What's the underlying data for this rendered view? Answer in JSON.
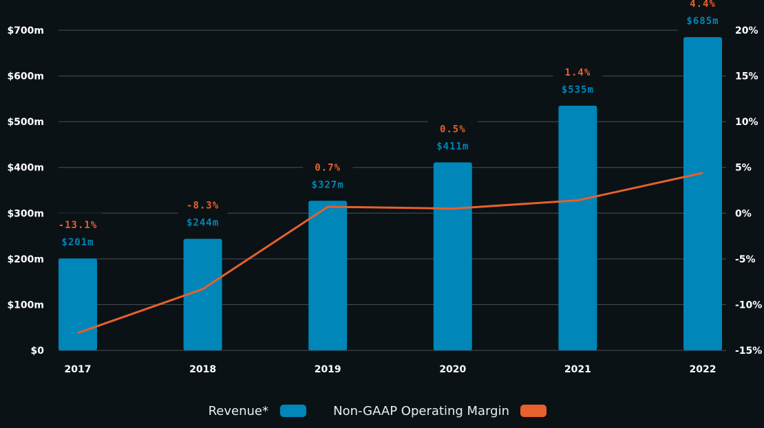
{
  "chart_data": {
    "type": "bar",
    "categories": [
      "2017",
      "2018",
      "2019",
      "2020",
      "2021",
      "2022"
    ],
    "series": [
      {
        "name": "Revenue*",
        "type": "bar",
        "axis": "left",
        "values": [
          201,
          244,
          327,
          411,
          535,
          685
        ],
        "labels": [
          "$201m",
          "$244m",
          "$327m",
          "$411m",
          "$535m",
          "$685m"
        ],
        "color": "#0086b8"
      },
      {
        "name": "Non-GAAP Operating Margin",
        "type": "line",
        "axis": "right",
        "values": [
          -13.1,
          -8.3,
          0.7,
          0.5,
          1.4,
          4.4
        ],
        "labels": [
          "-13.1%",
          "-8.3%",
          "0.7%",
          "0.5%",
          "1.4%",
          "4.4%"
        ],
        "color": "#e8602c"
      }
    ],
    "y_left": {
      "ylim": [
        0,
        700
      ],
      "ticks": [
        0,
        100,
        200,
        300,
        400,
        500,
        600,
        700
      ],
      "tick_labels": [
        "$0",
        "$100m",
        "$200m",
        "$300m",
        "$400m",
        "$500m",
        "$600m",
        "$700m"
      ]
    },
    "y_right": {
      "ylim": [
        -15,
        20
      ],
      "ticks": [
        -15,
        -10,
        -5,
        0,
        5,
        10,
        15,
        20
      ],
      "tick_labels": [
        "-15%",
        "-10%",
        "-5%",
        "0%",
        "5%",
        "10%",
        "15%",
        "20%"
      ]
    },
    "grid": true,
    "legend": "bottom-center",
    "title": "",
    "xlabel": "",
    "ylabel": ""
  },
  "colors": {
    "background": "#0b1216",
    "grid": "#4a5358",
    "text": "#ffffff"
  }
}
